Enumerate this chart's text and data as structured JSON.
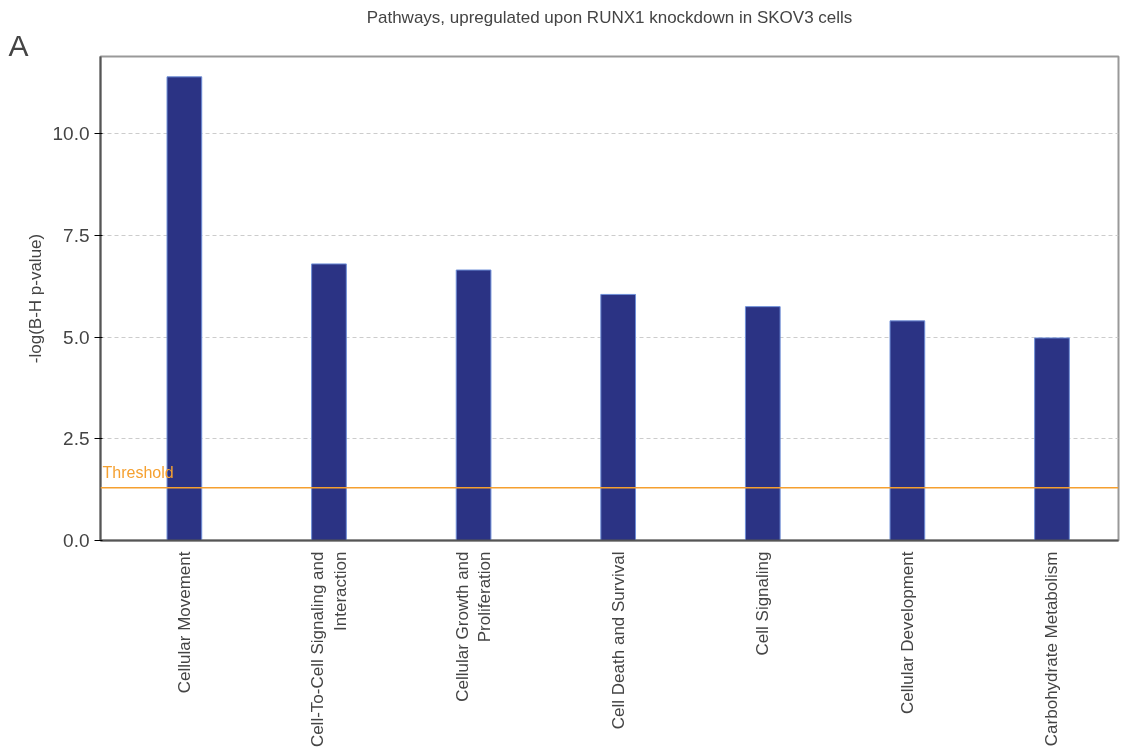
{
  "chart_data": {
    "type": "bar",
    "title": "Pathways, upregulated upon RUNX1 knockdown in SKOV3 cells",
    "ylabel": "-log(B-H p-value)",
    "categories": [
      "Cellular Movement",
      "Cell-To-Cell Signaling and Interaction",
      "Cellular Growth and Proliferation",
      "Cell Death and Survival",
      "Cell Signaling",
      "Cellular Development",
      "Carbohydrate Metabolism"
    ],
    "values": [
      11.4,
      6.8,
      6.65,
      6.05,
      5.75,
      5.4,
      4.98
    ],
    "color": "#2b3384",
    "ylim": [
      0,
      11.9
    ],
    "yticks": [
      {
        "value": 0,
        "label": "0.0"
      },
      {
        "value": 2.5,
        "label": "2.5"
      },
      {
        "value": 5,
        "label": "5.0"
      },
      {
        "value": 7.5,
        "label": "7.5"
      },
      {
        "value": 10,
        "label": "10.0"
      }
    ],
    "grid": "y",
    "ref_lines": [
      {
        "axis": "y",
        "value": 1.3,
        "label": "Threshold",
        "color": "#f5a030"
      }
    ],
    "annotations": [
      "A"
    ]
  }
}
